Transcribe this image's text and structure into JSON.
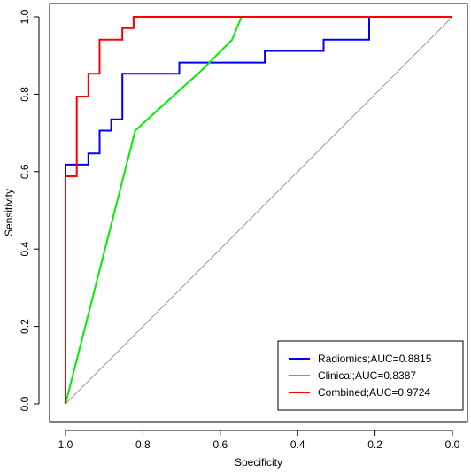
{
  "chart_data": {
    "type": "line",
    "xlabel": "Specificity",
    "ylabel": "Sensitivity",
    "xlim": [
      1.0,
      0.0
    ],
    "ylim": [
      0.0,
      1.0
    ],
    "x_ticks": [
      "1.0",
      "0.8",
      "0.6",
      "0.4",
      "0.2",
      "0.0"
    ],
    "y_ticks": [
      "0.0",
      "0.2",
      "0.4",
      "0.6",
      "0.8",
      "1.0"
    ],
    "x_tick_values": [
      1.0,
      0.8,
      0.6,
      0.4,
      0.2,
      0.0
    ],
    "y_tick_values": [
      0.0,
      0.2,
      0.4,
      0.6,
      0.8,
      1.0
    ],
    "grid": false,
    "legend_position": "bottom-right",
    "reference_line": true,
    "series": [
      {
        "name": "Radiomics;AUC=0.8815",
        "color": "#0000ff",
        "points": [
          [
            1.0,
            0.0
          ],
          [
            1.0,
            0.618
          ],
          [
            0.941,
            0.618
          ],
          [
            0.941,
            0.647
          ],
          [
            0.912,
            0.647
          ],
          [
            0.912,
            0.706
          ],
          [
            0.882,
            0.706
          ],
          [
            0.882,
            0.735
          ],
          [
            0.853,
            0.735
          ],
          [
            0.853,
            0.853
          ],
          [
            0.706,
            0.853
          ],
          [
            0.706,
            0.882
          ],
          [
            0.485,
            0.882
          ],
          [
            0.485,
            0.912
          ],
          [
            0.333,
            0.912
          ],
          [
            0.333,
            0.941
          ],
          [
            0.215,
            0.941
          ],
          [
            0.215,
            1.0
          ],
          [
            0.0,
            1.0
          ]
        ]
      },
      {
        "name": "Clinical;AUC=0.8387",
        "color": "#00ee00",
        "points": [
          [
            1.0,
            0.0
          ],
          [
            0.82,
            0.706
          ],
          [
            0.75,
            0.77
          ],
          [
            0.65,
            0.86
          ],
          [
            0.57,
            0.94
          ],
          [
            0.545,
            1.0
          ],
          [
            0.0,
            1.0
          ]
        ]
      },
      {
        "name": "Combined;AUC=0.9724",
        "color": "#ff0000",
        "points": [
          [
            1.0,
            0.0
          ],
          [
            1.0,
            0.588
          ],
          [
            0.971,
            0.588
          ],
          [
            0.971,
            0.794
          ],
          [
            0.941,
            0.794
          ],
          [
            0.941,
            0.853
          ],
          [
            0.912,
            0.853
          ],
          [
            0.912,
            0.941
          ],
          [
            0.853,
            0.941
          ],
          [
            0.853,
            0.971
          ],
          [
            0.824,
            0.971
          ],
          [
            0.824,
            1.0
          ],
          [
            0.0,
            1.0
          ]
        ]
      }
    ]
  }
}
